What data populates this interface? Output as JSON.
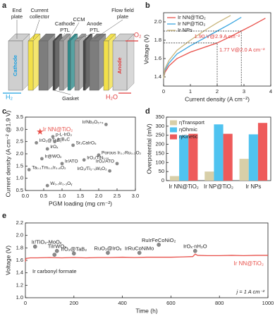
{
  "schematic": {
    "label": "a",
    "end_plate": [
      "End",
      "plate"
    ],
    "current_collector": [
      "Current",
      "collector"
    ],
    "cathode_ptl": [
      "Cathode",
      "PTL"
    ],
    "ccm": "CCM",
    "anode_ptl": [
      "Anode",
      "PTL"
    ],
    "flow_field_plate": [
      "Flow field",
      "plate"
    ],
    "gasket": "Gasket",
    "h2": "H₂",
    "o2": "O₂",
    "h2o": "H₂O",
    "cathode": "Cathode",
    "anode": "Anode"
  },
  "chart_data": [
    {
      "type": "line",
      "label": "b",
      "xlabel": "Current density (A cm⁻²)",
      "ylabel": "Voltage (V)",
      "x": [
        0,
        0.05,
        0.2,
        0.5,
        1,
        1.5,
        2,
        2.5,
        2.9,
        3.3,
        3.8
      ],
      "series": [
        {
          "name": "Ir NN@TiO₂",
          "color": "#e8504a",
          "values": [
            1.38,
            1.45,
            1.52,
            1.6,
            1.67,
            1.72,
            1.77,
            1.84,
            1.9,
            1.96,
            2.04
          ]
        },
        {
          "name": "Ir NP@TiO₂",
          "color": "#3aa6e0",
          "values": [
            1.38,
            1.47,
            1.55,
            1.65,
            1.74,
            1.82,
            1.9,
            1.98,
            2.05,
            null,
            null
          ]
        },
        {
          "name": "Ir NPs",
          "color": "#c8b47a",
          "values": [
            1.38,
            1.49,
            1.58,
            1.69,
            1.8,
            1.9,
            1.99,
            2.07,
            null,
            null,
            null
          ]
        }
      ],
      "annotations": [
        {
          "text": "1.90 V@2.9 A cm⁻²",
          "x": 2.9,
          "y": 1.9
        },
        {
          "text": "1.77 V@2.0 A cm⁻²",
          "x": 2,
          "y": 1.77
        }
      ],
      "annotation_color": "#e03a3a",
      "xlim": [
        0,
        4
      ],
      "xticks": [
        0,
        1,
        2,
        3,
        4
      ],
      "ylim": [
        1.3,
        2.1
      ],
      "yticks": [
        1.4,
        1.6,
        1.8,
        {
          "value": 2,
          "label": "2.0"
        }
      ],
      "legend": "upper left"
    },
    {
      "type": "scatter",
      "label": "c",
      "xlabel": "PGM loading (mg cm⁻²)",
      "ylabel": "Current density (A cm⁻² @1.9 V)",
      "x": [
        0.4,
        2.2,
        0.75,
        0.3,
        0.8,
        1.3,
        0.6,
        0.45,
        2.0,
        1.6,
        1.0,
        2.5,
        0.1,
        2.3,
        0.6
      ],
      "values": [
        2.9,
        3.2,
        2.7,
        2.45,
        2.5,
        2.35,
        2.2,
        1.8,
        1.95,
        1.75,
        1.6,
        1.6,
        1.35,
        1.3,
        0.7
      ],
      "point_labels": [
        "Ir NN@TiO₂",
        "Ir/Nb₂O₅₊ₓ",
        "p-L-IrO₂",
        "IrO₂@TaB₂",
        "Ir/B₄C",
        "Sr₂CaIrO₆",
        "IrOₓ",
        "Ir@WOₓ",
        "Porous Ir₀.₇Ru₀.₃O₂",
        "IrO₂/TiN₁₊ₓ",
        "Ir/ATO",
        "IrO₂/ATO",
        "Ta₀.₁Tm₀.₁Ir₀.₈O₂",
        "IrO₂/Ti₁₋ₓWₓO₂",
        "W₀.₇Ir₀.₃Oᵧ"
      ],
      "colors": [
        "#e8504a",
        "#8a8a8a",
        "#8a8a8a",
        "#8a8a8a",
        "#8a8a8a",
        "#8a8a8a",
        "#8a8a8a",
        "#8a8a8a",
        "#8a8a8a",
        "#8a8a8a",
        "#8a8a8a",
        "#8a8a8a",
        "#8a8a8a",
        "#8a8a8a",
        "#8a8a8a"
      ],
      "markers": [
        "star",
        "circle",
        "circle",
        "circle",
        "circle",
        "circle",
        "circle",
        "circle",
        "circle",
        "circle",
        "circle",
        "circle",
        "circle",
        "circle",
        "circle"
      ],
      "xlim": [
        0,
        3
      ],
      "xticks": [
        {
          "value": 0,
          "label": "0.0"
        },
        0.5,
        {
          "value": 1,
          "label": "1.0"
        },
        1.5,
        {
          "value": 2,
          "label": "2.0"
        },
        2.5,
        {
          "value": 3,
          "label": "3.0"
        }
      ],
      "ylim": [
        0.5,
        3.5
      ],
      "yticks": [
        0.5,
        {
          "value": 1,
          "label": "1.0"
        },
        1.5,
        {
          "value": 2,
          "label": "2.0"
        },
        2.5,
        {
          "value": 3,
          "label": "3.0"
        },
        3.5
      ]
    },
    {
      "type": "bar",
      "label": "d",
      "ylabel": "Overpotential (mV)",
      "categories": [
        "Ir NN@TiO₂",
        "Ir NP@TiO₂",
        "Ir NPs"
      ],
      "series": [
        {
          "name": "ηTransport",
          "color": "#d8cfa8",
          "values": [
            25,
            50,
            120
          ]
        },
        {
          "name": "ηOhmic",
          "color": "#4fc3f0",
          "values": [
            250,
            310,
            255
          ]
        },
        {
          "name": "ηKinetic",
          "color": "#ee5a5a",
          "values": [
            258,
            258,
            318
          ]
        }
      ],
      "ylim": [
        0,
        350
      ],
      "yticks": [
        0,
        50,
        100,
        150,
        200,
        250,
        300,
        350
      ],
      "legend": "upper left"
    },
    {
      "type": "line",
      "label": "e",
      "xlabel": "Time (h)",
      "ylabel": "Voltage (V)",
      "note": "j = 1 A cm⁻²",
      "x": [
        0,
        2,
        20,
        50,
        100,
        150,
        200,
        250,
        300,
        350,
        400,
        450,
        500,
        550,
        600,
        650,
        690,
        700,
        710,
        750,
        800,
        850,
        900,
        950,
        1000
      ],
      "series": [
        {
          "name": "Ir NN@TiO₂",
          "color": "#e8504a",
          "values": [
            1.58,
            1.63,
            1.64,
            1.64,
            1.645,
            1.64,
            1.645,
            1.64,
            1.645,
            1.645,
            1.65,
            1.645,
            1.65,
            1.65,
            1.65,
            1.655,
            1.66,
            1.7,
            1.68,
            1.675,
            1.675,
            1.68,
            1.675,
            1.68,
            1.68
          ]
        }
      ],
      "points": {
        "x": [
          40,
          130,
          120,
          200,
          340,
          470,
          550,
          700
        ],
        "values": [
          1.82,
          1.75,
          1.69,
          1.71,
          1.72,
          1.72,
          1.85,
          1.75
        ],
        "point_labels": [
          "Ir/TiO₂-MoOₓ",
          "TiIrWOₓ",
          "Ir carbonyl formate",
          "IrO₂@TaB₂",
          "RuO₂@IrOₓ",
          "IrRuCoNiMo",
          "RuIrFeCoNiO₂",
          "IrOₓ·nH₂O"
        ],
        "color": "#8a8a8a"
      },
      "xlim": [
        0,
        1000
      ],
      "xticks": [
        0,
        200,
        400,
        600,
        800,
        1000
      ],
      "ylim": [
        1,
        2.2
      ],
      "yticks": [
        {
          "value": 1,
          "label": "1.0"
        },
        1.2,
        1.4,
        1.6,
        1.8,
        {
          "value": 2,
          "label": "2.0"
        },
        2.2
      ]
    }
  ]
}
